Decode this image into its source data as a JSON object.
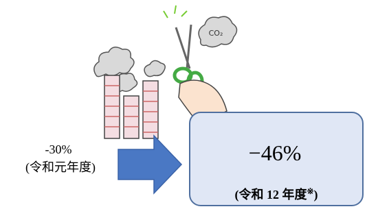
{
  "left": {
    "value": "-30%",
    "period": "(令和元年度)"
  },
  "right": {
    "value": "−46%",
    "period": "(令和 12 年度",
    "mark": "※",
    "close": ")"
  }
}
